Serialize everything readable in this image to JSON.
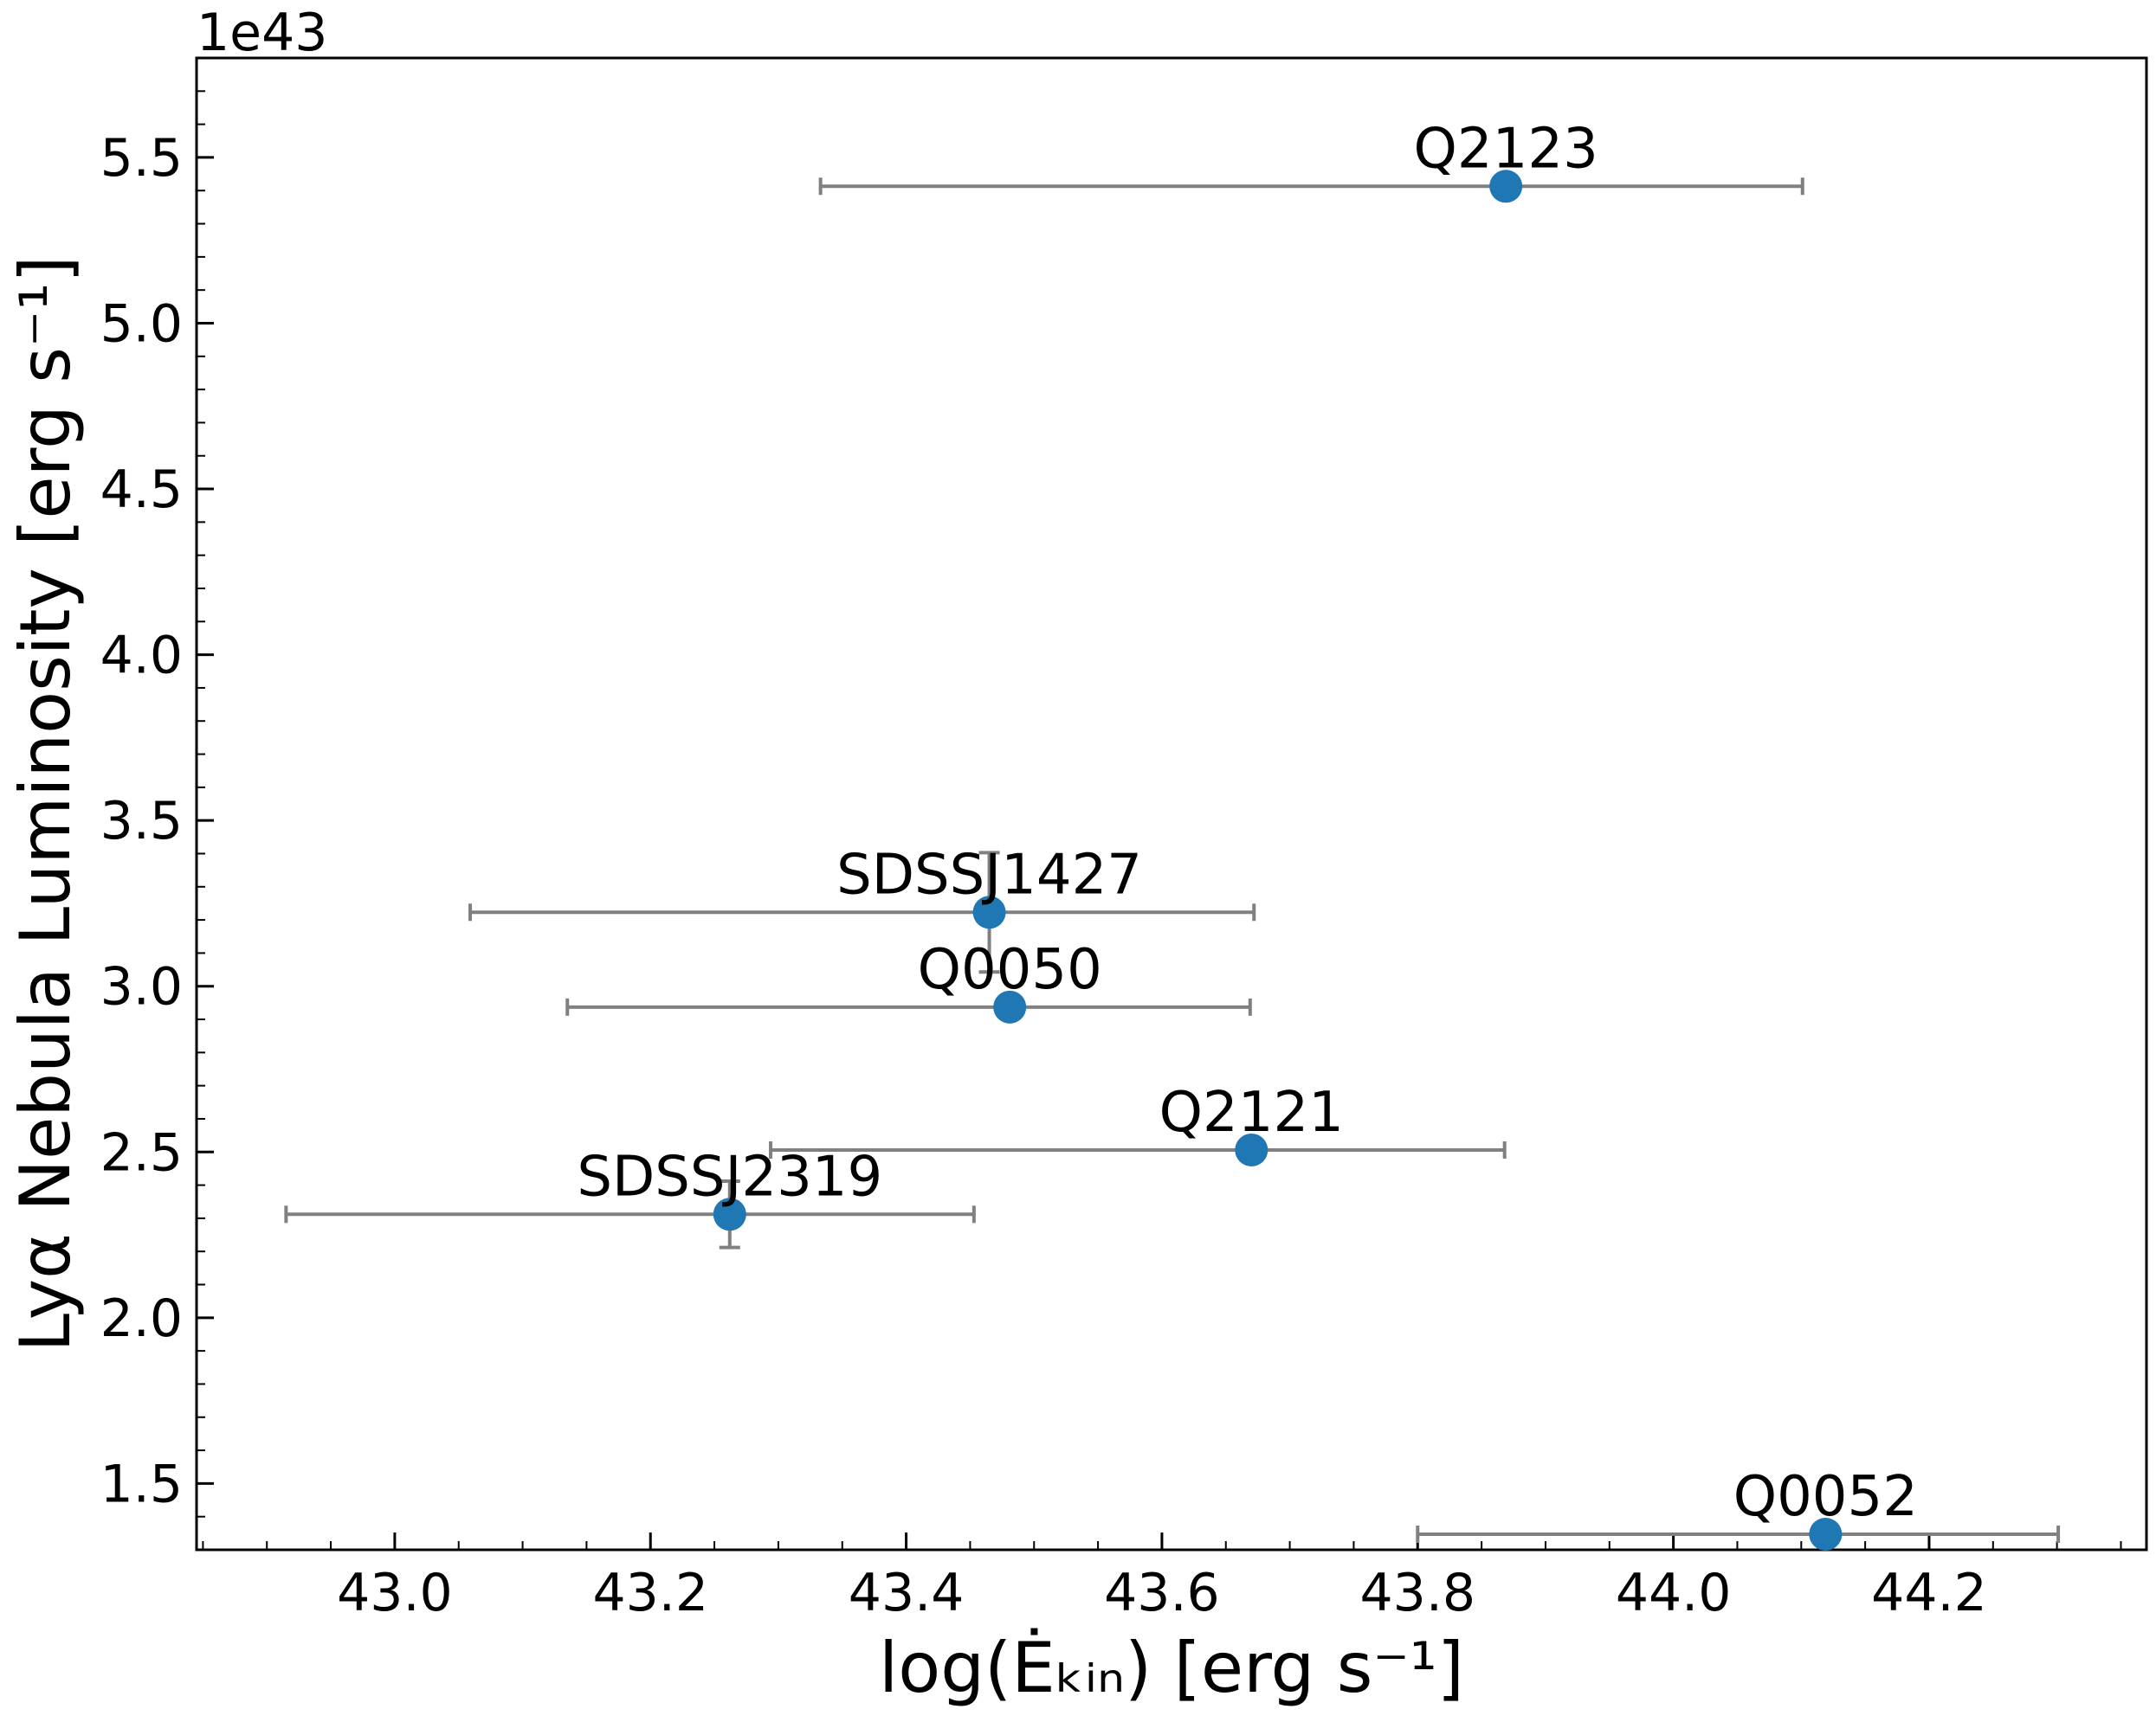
{
  "chart_data": {
    "type": "scatter",
    "xlabel": "log(Ėₖᵢₙ) [erg s⁻¹]",
    "ylabel": "Lyα Nebula Luminosity [erg s⁻¹]",
    "y_offset_label": "1e43",
    "labels": [
      "Q2123",
      "SDSSJ1427",
      "Q0050",
      "Q2121",
      "SDSSJ2319",
      "Q0052"
    ],
    "x": [
      43.869,
      43.465,
      43.481,
      43.67,
      43.262,
      44.119
    ],
    "y": [
      5.413,
      3.223,
      2.937,
      2.506,
      2.312,
      1.347
    ],
    "xerr_lower": [
      0.536,
      0.406,
      0.346,
      0.376,
      0.347,
      0.319
    ],
    "xerr_upper": [
      0.232,
      0.207,
      0.188,
      0.198,
      0.191,
      0.182
    ],
    "yerr": [
      null,
      0.18,
      null,
      null,
      0.1,
      null
    ],
    "color": "#1f77b4",
    "error_color": "#808080",
    "xlim": [
      42.845,
      44.37
    ],
    "ylim": [
      1.3,
      5.8
    ],
    "xticks": [
      {
        "value": 43.0,
        "label": "43.0"
      },
      43.2,
      43.4,
      43.6,
      43.8,
      {
        "value": 44.0,
        "label": "44.0"
      },
      44.2
    ],
    "yticks": [
      1.5,
      {
        "value": 2.0,
        "label": "2.0"
      },
      2.5,
      {
        "value": 3.0,
        "label": "3.0"
      },
      3.5,
      {
        "value": 4.0,
        "label": "4.0"
      },
      4.5,
      {
        "value": 5.0,
        "label": "5.0"
      },
      5.5
    ],
    "x_minor_step": 0.05,
    "y_minor_step": 0.1,
    "grid": false
  }
}
